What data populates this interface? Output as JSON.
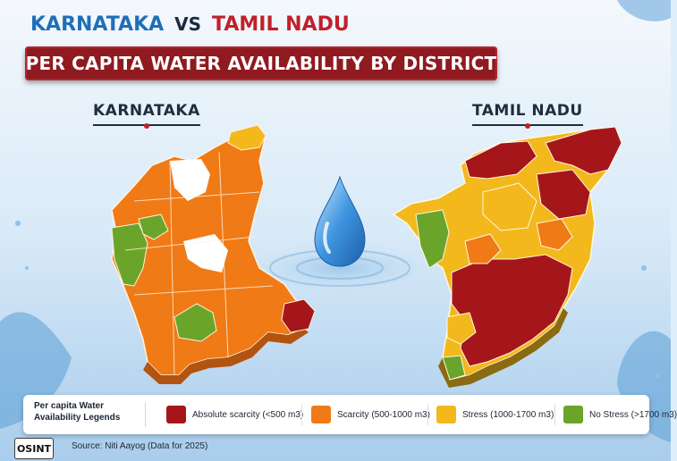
{
  "header": {
    "left_state": "KARNATAKA",
    "vs": "VS",
    "right_state": "TAMIL NADU"
  },
  "banner": {
    "title": "PER CAPITA WATER AVAILABILITY BY DISTRICT"
  },
  "maps": {
    "left_label": "KARNATAKA",
    "right_label": "TAMIL NADU"
  },
  "legend": {
    "title": "Per capita Water Availability Legends",
    "items": [
      {
        "label": "Absolute scarcity (<500 m3)",
        "color": "#a5161b"
      },
      {
        "label": "Scarcity (500-1000 m3)",
        "color": "#f07a16"
      },
      {
        "label": "Stress (1000-1700 m3)",
        "color": "#f2b81c"
      },
      {
        "label": "No Stress (>1700 m3)",
        "color": "#6aa52a"
      }
    ]
  },
  "logo": {
    "text": "OSINT"
  },
  "source": "Source: Niti Aayog (Data for 2025)",
  "icons": {
    "center": "water-drop-icon"
  }
}
